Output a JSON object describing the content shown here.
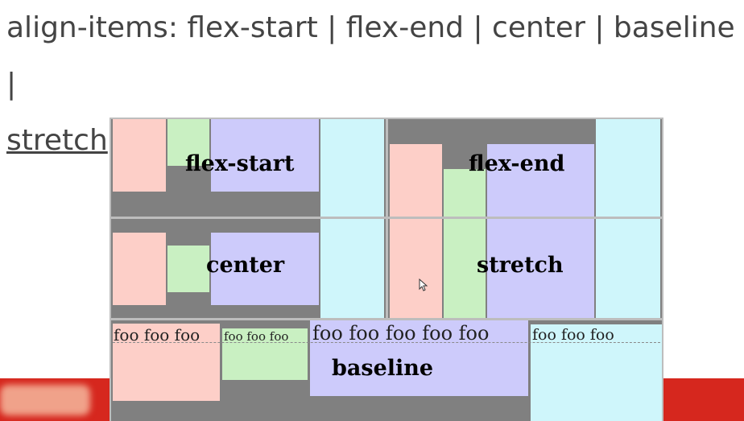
{
  "heading": {
    "text": "align-items: flex-start | flex-end | center | baseline |",
    "link": "stretch"
  },
  "panels": {
    "flex_start": "flex-start",
    "flex_end": "flex-end",
    "center": "center",
    "stretch": "stretch",
    "baseline": "baseline"
  },
  "baseline_items": {
    "item1": "foo foo foo",
    "item2": "foo foo foo",
    "item3": "foo foo foo foo foo",
    "item4": "foo foo foo"
  },
  "colors": {
    "pink": "#fdcfc8",
    "green": "#c9f0c2",
    "lavender": "#cdcbfb",
    "cyan": "#cff6fb",
    "container": "#808080",
    "accent_red": "#d6271e"
  }
}
